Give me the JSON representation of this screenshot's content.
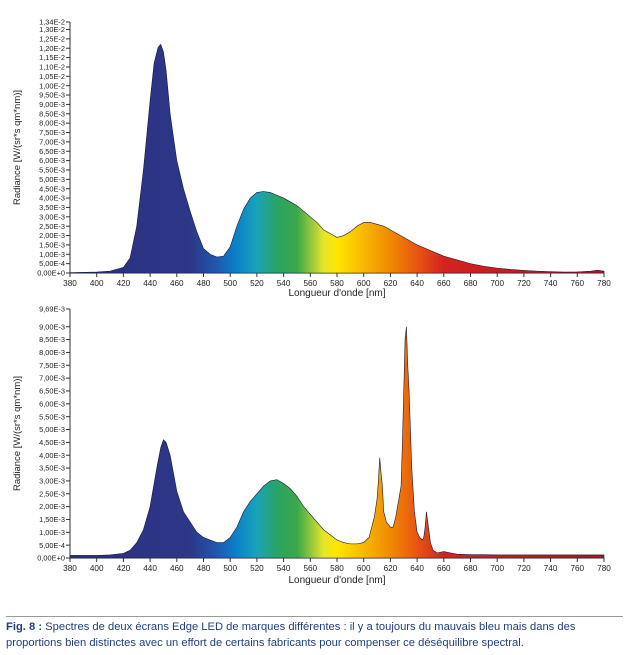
{
  "caption": {
    "label": "Fig. 8 :",
    "text": "Spectres de deux écrans Edge LED de marques différentes : il y a toujours du mauvais bleu mais dans des proportions bien distinctes avec un effort de certains fabricants pour compenser ce déséquilibre spectral."
  },
  "chart_data": [
    {
      "type": "area",
      "title": "",
      "xlabel": "Longueur d'onde [nm]",
      "ylabel": "Radiance [W/(sr*s qm*nm)]",
      "xlim": [
        380,
        780
      ],
      "ylim": [
        0,
        0.0134
      ],
      "xticks": [
        380,
        400,
        420,
        440,
        460,
        480,
        500,
        520,
        540,
        560,
        580,
        600,
        620,
        640,
        660,
        680,
        700,
        720,
        740,
        760,
        780
      ],
      "xtick_labels": [
        "380",
        "400",
        "420",
        "440",
        "460",
        "480",
        "500",
        "520",
        "540",
        "560",
        "580",
        "600",
        "620",
        "640",
        "660",
        "680",
        "700",
        "720",
        "740",
        "760",
        "780"
      ],
      "yticks": [
        0,
        0.0005,
        0.001,
        0.0015,
        0.002,
        0.0025,
        0.003,
        0.0035,
        0.004,
        0.0045,
        0.005,
        0.0055,
        0.006,
        0.0065,
        0.007,
        0.0075,
        0.008,
        0.0085,
        0.009,
        0.0095,
        0.01,
        0.0105,
        0.011,
        0.0115,
        0.012,
        0.0125,
        0.013,
        0.0134
      ],
      "ytick_labels": [
        "0,00E+0",
        "5,00E-4",
        "1,00E-3",
        "1,50E-3",
        "2,00E-3",
        "2,50E-3",
        "3,00E-3",
        "3,50E-3",
        "4,00E-3",
        "4,50E-3",
        "5,00E-3",
        "5,50E-3",
        "6,00E-3",
        "6,50E-3",
        "7,00E-3",
        "7,50E-3",
        "8,00E-3",
        "8,50E-3",
        "9,00E-3",
        "9,50E-3",
        "1,00E-2",
        "1,05E-2",
        "1,10E-2",
        "1,15E-2",
        "1,20E-2",
        "1,25E-2",
        "1,30E-2",
        "1,34E-2"
      ],
      "x": [
        380,
        400,
        410,
        420,
        425,
        430,
        435,
        440,
        443,
        446,
        448,
        450,
        452,
        455,
        460,
        465,
        470,
        475,
        480,
        485,
        490,
        495,
        500,
        505,
        510,
        515,
        520,
        525,
        530,
        535,
        540,
        545,
        550,
        555,
        560,
        565,
        570,
        575,
        580,
        585,
        590,
        595,
        600,
        605,
        610,
        615,
        620,
        625,
        630,
        635,
        640,
        650,
        660,
        670,
        680,
        690,
        700,
        710,
        720,
        730,
        740,
        750,
        760,
        770,
        775,
        780
      ],
      "values": [
        2e-05,
        5e-05,
        0.0001,
        0.0003,
        0.0008,
        0.0025,
        0.0055,
        0.0092,
        0.0112,
        0.01205,
        0.0122,
        0.0118,
        0.0108,
        0.0085,
        0.006,
        0.0045,
        0.0033,
        0.0022,
        0.0013,
        0.001,
        0.00085,
        0.0009,
        0.0014,
        0.0025,
        0.0034,
        0.004,
        0.0043,
        0.00435,
        0.0043,
        0.00415,
        0.004,
        0.0038,
        0.0036,
        0.0033,
        0.003,
        0.0027,
        0.0023,
        0.0021,
        0.0019,
        0.002,
        0.0022,
        0.0025,
        0.0027,
        0.0027,
        0.0026,
        0.0025,
        0.0023,
        0.0021,
        0.0019,
        0.0017,
        0.0015,
        0.0012,
        0.0009,
        0.0007,
        0.0005,
        0.00036,
        0.00026,
        0.00019,
        0.00014,
        0.0001,
        7e-05,
        5e-05,
        6e-05,
        0.0001,
        0.00015,
        0.0001
      ]
    },
    {
      "type": "area",
      "title": "",
      "xlabel": "Longueur d'onde [nm]",
      "ylabel": "Radiance [W/(sr*s qm*nm)]",
      "xlim": [
        380,
        780
      ],
      "ylim": [
        0,
        0.00969
      ],
      "xticks": [
        380,
        400,
        420,
        440,
        460,
        480,
        500,
        520,
        540,
        560,
        580,
        600,
        620,
        640,
        660,
        680,
        700,
        720,
        740,
        760,
        780
      ],
      "xtick_labels": [
        "380",
        "400",
        "420",
        "440",
        "460",
        "480",
        "500",
        "520",
        "540",
        "560",
        "580",
        "600",
        "620",
        "640",
        "660",
        "680",
        "700",
        "720",
        "740",
        "760",
        "780"
      ],
      "yticks": [
        0,
        0.0005,
        0.001,
        0.0015,
        0.002,
        0.0025,
        0.003,
        0.0035,
        0.004,
        0.0045,
        0.005,
        0.0055,
        0.006,
        0.0065,
        0.007,
        0.0075,
        0.008,
        0.0085,
        0.009,
        0.00969
      ],
      "ytick_labels": [
        "0,00E+0",
        "5,00E-4",
        "1,00E-3",
        "1,50E-3",
        "2,00E-3",
        "2,50E-3",
        "3,00E-3",
        "3,50E-3",
        "4,00E-3",
        "4,50E-3",
        "5,00E-3",
        "5,50E-3",
        "6,00E-3",
        "6,50E-3",
        "7,00E-3",
        "7,50E-3",
        "8,00E-3",
        "8,50E-3",
        "9,00E-3",
        "9,69E-3"
      ],
      "x": [
        380,
        400,
        410,
        420,
        425,
        430,
        435,
        440,
        445,
        448,
        450,
        452,
        455,
        460,
        465,
        470,
        475,
        480,
        485,
        490,
        495,
        500,
        505,
        510,
        515,
        520,
        525,
        530,
        535,
        540,
        545,
        550,
        555,
        560,
        565,
        570,
        575,
        580,
        585,
        590,
        595,
        600,
        602,
        604,
        606,
        608,
        610,
        611,
        612,
        613,
        614,
        615,
        617,
        620,
        622,
        624,
        626,
        628,
        629,
        630,
        631,
        632,
        633,
        634,
        635,
        636,
        638,
        640,
        642,
        644,
        645,
        646,
        647,
        648,
        650,
        652,
        655,
        660,
        665,
        670,
        675,
        680,
        690,
        700,
        720,
        740,
        760,
        780
      ],
      "values": [
        0.0001,
        0.0001,
        0.00012,
        0.00018,
        0.0003,
        0.0006,
        0.0011,
        0.002,
        0.0035,
        0.0043,
        0.0046,
        0.0045,
        0.004,
        0.0026,
        0.0018,
        0.0014,
        0.001,
        0.0008,
        0.0007,
        0.0006,
        0.0006,
        0.0008,
        0.0012,
        0.0018,
        0.0022,
        0.0025,
        0.0028,
        0.003,
        0.00305,
        0.0029,
        0.0027,
        0.0024,
        0.002,
        0.0017,
        0.0014,
        0.0011,
        0.0009,
        0.0007,
        0.0006,
        0.00055,
        0.00055,
        0.0006,
        0.0007,
        0.0008,
        0.0012,
        0.0016,
        0.0023,
        0.003,
        0.0039,
        0.0033,
        0.0028,
        0.0018,
        0.0014,
        0.0012,
        0.0012,
        0.0016,
        0.0022,
        0.0028,
        0.0045,
        0.0065,
        0.0085,
        0.009,
        0.0075,
        0.0065,
        0.005,
        0.0035,
        0.0018,
        0.001,
        0.0008,
        0.0007,
        0.0008,
        0.0012,
        0.0018,
        0.0014,
        0.0006,
        0.0003,
        0.0002,
        0.00025,
        0.0002,
        0.00015,
        0.00014,
        0.00013,
        0.00013,
        0.00012,
        0.00012,
        0.00012,
        0.00012,
        0.00012
      ]
    }
  ]
}
